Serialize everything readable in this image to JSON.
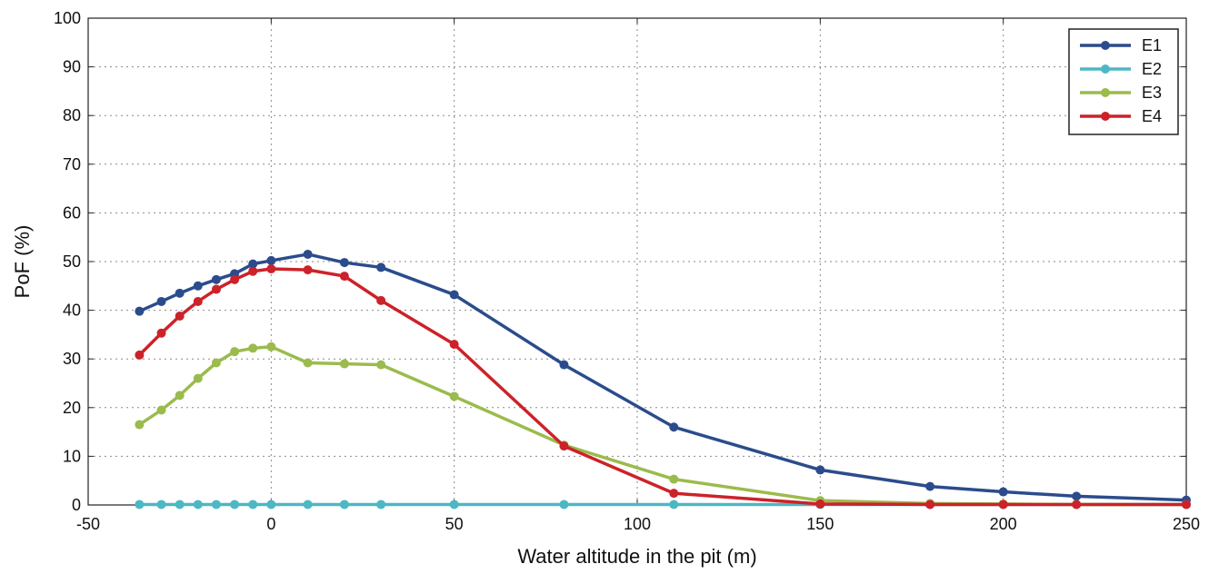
{
  "chart_data": {
    "type": "line",
    "title": "",
    "xlabel": "Water altitude in the pit (m)",
    "ylabel": "PoF (%)",
    "xlim": [
      -50,
      250
    ],
    "ylim": [
      0,
      100
    ],
    "xticks": [
      -50,
      0,
      50,
      100,
      150,
      200,
      250
    ],
    "yticks": [
      0,
      10,
      20,
      30,
      40,
      50,
      60,
      70,
      80,
      90,
      100
    ],
    "grid": true,
    "legend_position": "top-right",
    "series": [
      {
        "name": "E1",
        "color": "#2B4C8C",
        "x": [
          -36,
          -30,
          -25,
          -20,
          -15,
          -10,
          -5,
          0,
          10,
          20,
          30,
          50,
          80,
          110,
          150,
          180,
          200,
          220,
          250
        ],
        "y": [
          39.8,
          41.8,
          43.5,
          45.0,
          46.3,
          47.5,
          49.5,
          50.2,
          51.5,
          49.8,
          48.8,
          43.2,
          28.8,
          16.0,
          7.2,
          3.8,
          2.7,
          1.8,
          1.0
        ]
      },
      {
        "name": "E2",
        "color": "#4CB8C4",
        "x": [
          -36,
          -30,
          -25,
          -20,
          -15,
          -10,
          -5,
          0,
          10,
          20,
          30,
          50,
          80,
          110,
          150,
          180,
          200,
          220,
          250
        ],
        "y": [
          0.1,
          0.1,
          0.1,
          0.1,
          0.1,
          0.1,
          0.1,
          0.1,
          0.1,
          0.1,
          0.1,
          0.1,
          0.1,
          0.1,
          0.1,
          0.1,
          0.1,
          0.1,
          0.1
        ]
      },
      {
        "name": "E3",
        "color": "#9BBB4D",
        "x": [
          -36,
          -30,
          -25,
          -20,
          -15,
          -10,
          -5,
          0,
          10,
          20,
          30,
          50,
          80,
          110,
          150,
          180,
          200,
          220,
          250
        ],
        "y": [
          16.5,
          19.5,
          22.5,
          26.0,
          29.2,
          31.5,
          32.2,
          32.5,
          29.2,
          29.0,
          28.8,
          22.3,
          12.3,
          5.3,
          0.9,
          0.3,
          0.2,
          0.1,
          0.1
        ]
      },
      {
        "name": "E4",
        "color": "#CC2229",
        "x": [
          -36,
          -30,
          -25,
          -20,
          -15,
          -10,
          -5,
          0,
          10,
          20,
          30,
          50,
          80,
          110,
          150,
          180,
          200,
          220,
          250
        ],
        "y": [
          30.8,
          35.3,
          38.8,
          41.8,
          44.3,
          46.3,
          48.0,
          48.5,
          48.3,
          47.0,
          42.0,
          33.0,
          12.1,
          2.4,
          0.2,
          0.1,
          0.1,
          0.1,
          0.1
        ]
      }
    ]
  }
}
